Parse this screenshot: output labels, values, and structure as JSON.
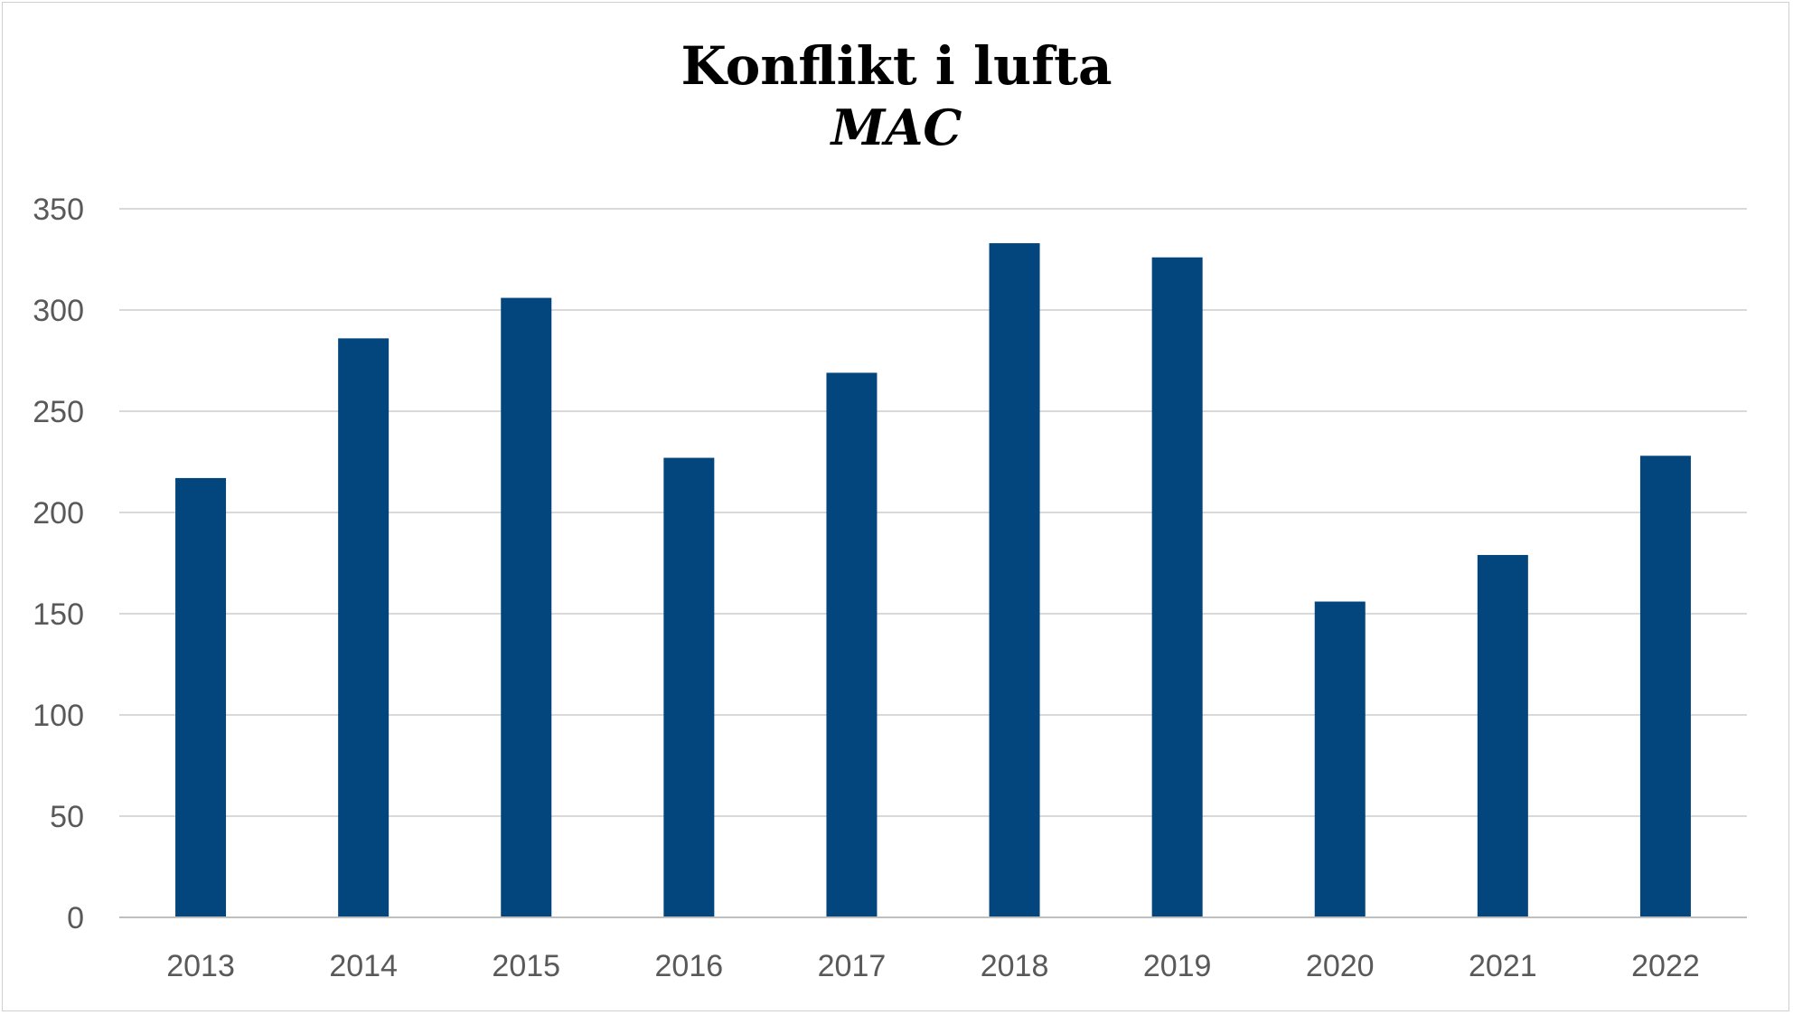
{
  "chart_data": {
    "type": "bar",
    "title": "Konflikt i lufta",
    "subtitle": "MAC",
    "xlabel": "",
    "ylabel": "",
    "categories": [
      "2013",
      "2014",
      "2015",
      "2016",
      "2017",
      "2018",
      "2019",
      "2020",
      "2021",
      "2022"
    ],
    "values": [
      217,
      286,
      306,
      227,
      269,
      333,
      326,
      156,
      179,
      228
    ],
    "ylim": [
      0,
      350
    ],
    "yticks": [
      0,
      50,
      100,
      150,
      200,
      250,
      300,
      350
    ],
    "ytick_labels": [
      "0",
      "50",
      "100",
      "150",
      "200",
      "250",
      "300",
      "350"
    ],
    "grid": true,
    "legend": "none",
    "bar_color": "#03467D",
    "grid_color": "#D9D9D9",
    "axis_color": "#BFBFBF",
    "tick_label_color": "#595959"
  }
}
